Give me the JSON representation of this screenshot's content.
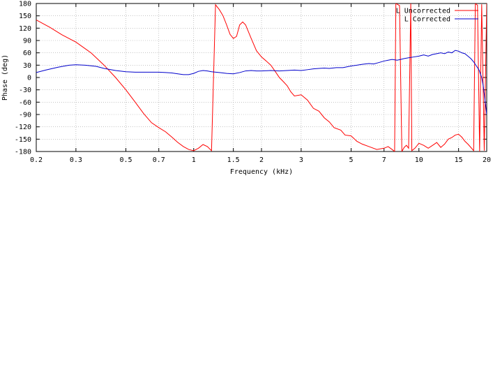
{
  "chart_data": [
    {
      "type": "line",
      "xscale": "log",
      "xlabel": "Frequency (kHz)",
      "ylabel": "Phase (deg)",
      "xlim": [
        0.2,
        20
      ],
      "ylim": [
        -180,
        180
      ],
      "grid": true,
      "legend_position": "top-right",
      "xticks": [
        0.2,
        0.3,
        0.5,
        0.7,
        1,
        1.5,
        2,
        3,
        5,
        7,
        10,
        15,
        20
      ],
      "xtick_labels": [
        "0.2",
        "0.3",
        "0.5",
        "0.7",
        "1",
        "1.5",
        "2",
        "3",
        "5",
        "7",
        "10",
        "15",
        "20"
      ],
      "yticks": [
        -180,
        -150,
        -120,
        -90,
        -60,
        -30,
        0,
        30,
        60,
        90,
        120,
        150,
        180
      ],
      "ytick_labels": [
        "-180",
        "-150",
        "-120",
        "-90",
        "-60",
        "-30",
        "0",
        "30",
        "60",
        "90",
        "120",
        "150",
        "180"
      ],
      "series": [
        {
          "name": "L Uncorrected",
          "color": "#ff0000",
          "points": [
            [
              0.2,
              140
            ],
            [
              0.23,
              122
            ],
            [
              0.26,
              104
            ],
            [
              0.3,
              86
            ],
            [
              0.35,
              60
            ],
            [
              0.4,
              30
            ],
            [
              0.45,
              0
            ],
            [
              0.5,
              -30
            ],
            [
              0.55,
              -60
            ],
            [
              0.6,
              -88
            ],
            [
              0.65,
              -110
            ],
            [
              0.7,
              -122
            ],
            [
              0.75,
              -132
            ],
            [
              0.8,
              -145
            ],
            [
              0.85,
              -158
            ],
            [
              0.9,
              -168
            ],
            [
              0.95,
              -175
            ],
            [
              1.0,
              -178
            ],
            [
              1.05,
              -172
            ],
            [
              1.1,
              -163
            ],
            [
              1.15,
              -168
            ],
            [
              1.2,
              -178
            ],
            [
              1.25,
              177
            ],
            [
              1.3,
              165
            ],
            [
              1.35,
              150
            ],
            [
              1.4,
              128
            ],
            [
              1.45,
              105
            ],
            [
              1.5,
              95
            ],
            [
              1.55,
              100
            ],
            [
              1.6,
              128
            ],
            [
              1.65,
              135
            ],
            [
              1.7,
              128
            ],
            [
              1.8,
              95
            ],
            [
              1.9,
              65
            ],
            [
              2.0,
              50
            ],
            [
              2.1,
              40
            ],
            [
              2.2,
              30
            ],
            [
              2.3,
              15
            ],
            [
              2.4,
              0
            ],
            [
              2.5,
              -10
            ],
            [
              2.6,
              -20
            ],
            [
              2.7,
              -35
            ],
            [
              2.8,
              -45
            ],
            [
              3.0,
              -42
            ],
            [
              3.2,
              -55
            ],
            [
              3.4,
              -75
            ],
            [
              3.6,
              -82
            ],
            [
              3.8,
              -98
            ],
            [
              4.0,
              -108
            ],
            [
              4.2,
              -122
            ],
            [
              4.5,
              -128
            ],
            [
              4.7,
              -140
            ],
            [
              5.0,
              -142
            ],
            [
              5.3,
              -155
            ],
            [
              5.6,
              -162
            ],
            [
              6.0,
              -168
            ],
            [
              6.5,
              -175
            ],
            [
              7.0,
              -172
            ],
            [
              7.3,
              -168
            ],
            [
              7.6,
              -175
            ],
            [
              7.8,
              -180
            ],
            [
              7.9,
              180
            ],
            [
              8.2,
              175
            ],
            [
              8.4,
              -180
            ],
            [
              8.6,
              -170
            ],
            [
              8.8,
              -165
            ],
            [
              9.0,
              -172
            ],
            [
              9.2,
              180
            ],
            [
              9.3,
              -178
            ],
            [
              9.6,
              -172
            ],
            [
              10.0,
              -160
            ],
            [
              10.5,
              -165
            ],
            [
              11.0,
              -172
            ],
            [
              11.5,
              -165
            ],
            [
              12.0,
              -158
            ],
            [
              12.5,
              -170
            ],
            [
              13.0,
              -162
            ],
            [
              13.5,
              -150
            ],
            [
              14.0,
              -146
            ],
            [
              14.5,
              -140
            ],
            [
              15.0,
              -138
            ],
            [
              15.5,
              -145
            ],
            [
              16.0,
              -155
            ],
            [
              16.5,
              -162
            ],
            [
              17.0,
              -170
            ],
            [
              17.5,
              -178
            ],
            [
              17.8,
              180
            ],
            [
              18.2,
              176
            ],
            [
              18.6,
              -180
            ],
            [
              19.0,
              178
            ],
            [
              19.5,
              -178
            ],
            [
              20.0,
              180
            ]
          ]
        },
        {
          "type": "line",
          "name": "L Corrected",
          "color": "#0000cc",
          "points": [
            [
              0.2,
              12
            ],
            [
              0.22,
              18
            ],
            [
              0.25,
              25
            ],
            [
              0.28,
              30
            ],
            [
              0.3,
              31
            ],
            [
              0.33,
              30
            ],
            [
              0.37,
              27
            ],
            [
              0.4,
              22
            ],
            [
              0.45,
              17
            ],
            [
              0.5,
              14
            ],
            [
              0.55,
              13
            ],
            [
              0.6,
              13
            ],
            [
              0.7,
              13
            ],
            [
              0.75,
              12
            ],
            [
              0.8,
              11
            ],
            [
              0.85,
              9
            ],
            [
              0.9,
              7
            ],
            [
              0.95,
              7
            ],
            [
              1.0,
              10
            ],
            [
              1.05,
              15
            ],
            [
              1.1,
              17
            ],
            [
              1.15,
              16
            ],
            [
              1.2,
              14
            ],
            [
              1.3,
              12
            ],
            [
              1.4,
              10
            ],
            [
              1.5,
              9
            ],
            [
              1.6,
              12
            ],
            [
              1.7,
              16
            ],
            [
              1.8,
              17
            ],
            [
              1.9,
              16
            ],
            [
              2.0,
              16
            ],
            [
              2.2,
              17
            ],
            [
              2.4,
              16
            ],
            [
              2.6,
              17
            ],
            [
              2.8,
              18
            ],
            [
              3.0,
              17
            ],
            [
              3.2,
              19
            ],
            [
              3.4,
              21
            ],
            [
              3.6,
              22
            ],
            [
              3.8,
              23
            ],
            [
              4.0,
              22
            ],
            [
              4.3,
              24
            ],
            [
              4.6,
              24
            ],
            [
              5.0,
              28
            ],
            [
              5.3,
              30
            ],
            [
              5.6,
              32
            ],
            [
              6.0,
              34
            ],
            [
              6.3,
              33
            ],
            [
              6.6,
              36
            ],
            [
              7.0,
              40
            ],
            [
              7.3,
              42
            ],
            [
              7.6,
              44
            ],
            [
              8.0,
              42
            ],
            [
              8.3,
              44
            ],
            [
              8.6,
              46
            ],
            [
              9.0,
              48
            ],
            [
              9.5,
              50
            ],
            [
              10.0,
              52
            ],
            [
              10.5,
              55
            ],
            [
              11.0,
              52
            ],
            [
              11.5,
              56
            ],
            [
              12.0,
              58
            ],
            [
              12.5,
              60
            ],
            [
              13.0,
              58
            ],
            [
              13.5,
              62
            ],
            [
              14.0,
              60
            ],
            [
              14.5,
              66
            ],
            [
              15.0,
              64
            ],
            [
              15.5,
              60
            ],
            [
              16.0,
              58
            ],
            [
              16.5,
              52
            ],
            [
              17.0,
              46
            ],
            [
              17.5,
              38
            ],
            [
              18.0,
              28
            ],
            [
              18.5,
              18
            ],
            [
              19.0,
              0
            ],
            [
              19.3,
              -20
            ],
            [
              19.6,
              -50
            ],
            [
              19.8,
              -70
            ],
            [
              20.0,
              -90
            ]
          ]
        }
      ]
    }
  ]
}
